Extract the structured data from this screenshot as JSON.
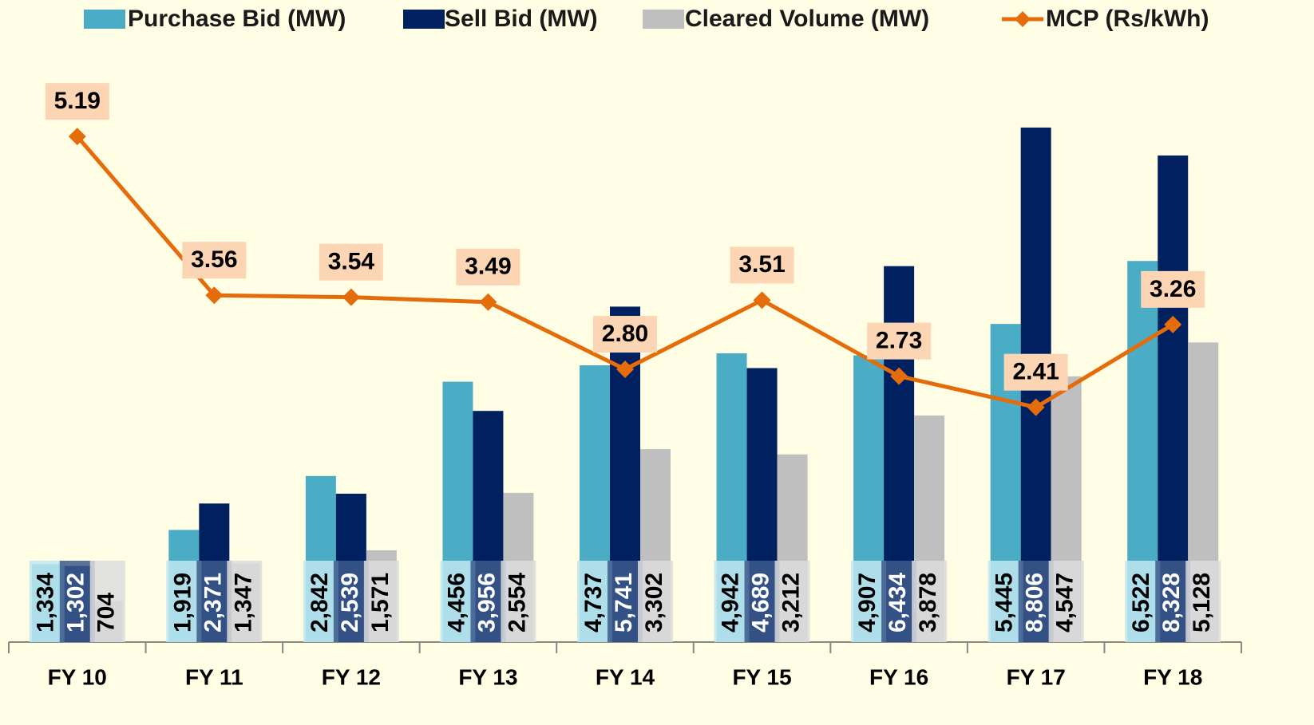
{
  "chart_data": {
    "type": "bar",
    "categories": [
      "FY 10",
      "FY 11",
      "FY 12",
      "FY 13",
      "FY 14",
      "FY 15",
      "FY 16",
      "FY 17",
      "FY 18"
    ],
    "series": [
      {
        "name": "Purchase Bid (MW)",
        "type": "bar",
        "color": "#4bacc6",
        "values": [
          1334,
          1919,
          2842,
          4456,
          4737,
          4942,
          4907,
          5445,
          6522
        ],
        "value_labels": [
          "1,334",
          "1,919",
          "2,842",
          "4,456",
          "4,737",
          "4,942",
          "4,907",
          "5,445",
          "6,522"
        ]
      },
      {
        "name": "Sell Bid (MW)",
        "type": "bar",
        "color": "#002060",
        "values": [
          1302,
          2371,
          2539,
          3956,
          5741,
          4689,
          6434,
          8806,
          8328
        ],
        "value_labels": [
          "1,302",
          "2,371",
          "2,539",
          "3,956",
          "5,741",
          "4,689",
          "6,434",
          "8,806",
          "8,328"
        ]
      },
      {
        "name": "Cleared Volume (MW)",
        "type": "bar",
        "color": "#bfbfbf",
        "values": [
          704,
          1347,
          1571,
          2554,
          3302,
          3212,
          3878,
          4547,
          5128
        ],
        "value_labels": [
          "704",
          "1,347",
          "1,571",
          "2,554",
          "3,302",
          "3,212",
          "3,878",
          "4,547",
          "5,128"
        ]
      },
      {
        "name": "MCP (Rs/kWh)",
        "type": "line",
        "axis": "y2",
        "color": "#e46c0a",
        "values": [
          5.19,
          3.56,
          3.54,
          3.49,
          2.8,
          3.51,
          2.73,
          2.41,
          3.26
        ],
        "value_labels": [
          "5.19",
          "3.56",
          "3.54",
          "3.49",
          "2.80",
          "3.51",
          "2.73",
          "2.41",
          "3.26"
        ]
      }
    ],
    "ylim": [
      0,
      10170
    ],
    "y2lim": [
      0,
      6.1
    ],
    "legend": "top"
  }
}
